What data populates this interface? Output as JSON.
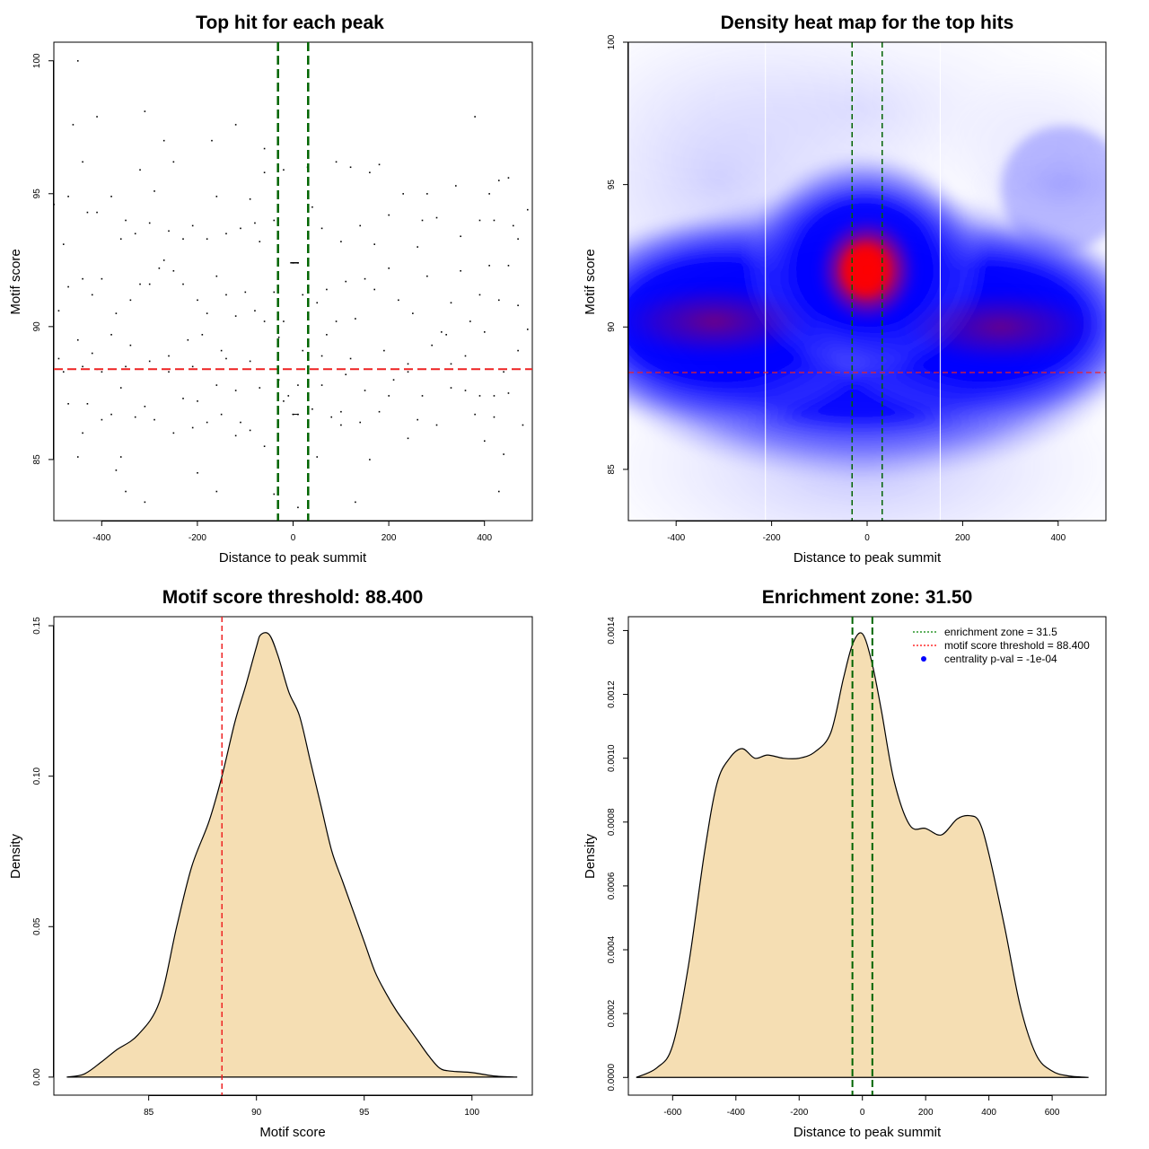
{
  "chart_data": [
    {
      "type": "scatter",
      "title": "Top hit for each peak",
      "xlabel": "Distance to peak summit",
      "ylabel": "Motif score",
      "xlim": [
        -500,
        500
      ],
      "ylim": [
        82.7,
        100.7
      ],
      "xticks": [
        -400,
        -200,
        0,
        200,
        400
      ],
      "xtick_labels": [
        "-400",
        "-200",
        "0",
        "200",
        "400"
      ],
      "yticks": [
        85,
        90,
        95,
        100
      ],
      "ytick_labels": [
        "85",
        "90",
        "95",
        "100"
      ],
      "threshold": 88.4,
      "enrichment_zone": 31.5,
      "points": [
        [
          -450,
          100
        ],
        [
          -310,
          98.1
        ],
        [
          -410,
          97.9
        ],
        [
          -460,
          97.6
        ],
        [
          -120,
          97.6
        ],
        [
          -170,
          97
        ],
        [
          -270,
          97
        ],
        [
          -60,
          96.7
        ],
        [
          -250,
          96.2
        ],
        [
          -440,
          96.2
        ],
        [
          30,
          96
        ],
        [
          -20,
          95.9
        ],
        [
          -320,
          95.9
        ],
        [
          -60,
          95.8
        ],
        [
          160,
          95.8
        ],
        [
          90,
          96.2
        ],
        [
          120,
          96
        ],
        [
          -470,
          94.9
        ],
        [
          -380,
          94.9
        ],
        [
          -90,
          94.8
        ],
        [
          -160,
          94.9
        ],
        [
          -290,
          95.1
        ],
        [
          40,
          94.5
        ],
        [
          230,
          95
        ],
        [
          280,
          95
        ],
        [
          340,
          95.3
        ],
        [
          410,
          95
        ],
        [
          430,
          95.5
        ],
        [
          450,
          95.6
        ],
        [
          -500,
          94.6
        ],
        [
          -430,
          94.3
        ],
        [
          -410,
          94.3
        ],
        [
          -350,
          94
        ],
        [
          -300,
          93.9
        ],
        [
          -260,
          93.6
        ],
        [
          -210,
          93.8
        ],
        [
          -140,
          93.5
        ],
        [
          -110,
          93.7
        ],
        [
          -80,
          93.9
        ],
        [
          -40,
          94
        ],
        [
          60,
          93.7
        ],
        [
          140,
          93.8
        ],
        [
          200,
          94.2
        ],
        [
          270,
          94
        ],
        [
          300,
          94.1
        ],
        [
          390,
          94
        ],
        [
          420,
          94
        ],
        [
          460,
          93.8
        ],
        [
          490,
          94.4
        ],
        [
          -480,
          93.1
        ],
        [
          -360,
          93.3
        ],
        [
          -330,
          93.5
        ],
        [
          -230,
          93.3
        ],
        [
          -180,
          93.3
        ],
        [
          -70,
          93.2
        ],
        [
          0,
          92.4
        ],
        [
          10,
          92.4
        ],
        [
          100,
          93.2
        ],
        [
          170,
          93.1
        ],
        [
          260,
          93
        ],
        [
          350,
          93.4
        ],
        [
          470,
          93.3
        ],
        [
          -470,
          91.5
        ],
        [
          -440,
          91.8
        ],
        [
          -420,
          91.2
        ],
        [
          -400,
          91.8
        ],
        [
          -370,
          90.5
        ],
        [
          -340,
          91
        ],
        [
          -320,
          91.6
        ],
        [
          -300,
          91.6
        ],
        [
          -280,
          92.2
        ],
        [
          -270,
          92.5
        ],
        [
          -250,
          92.1
        ],
        [
          -230,
          91.6
        ],
        [
          -200,
          91
        ],
        [
          -180,
          90.5
        ],
        [
          -160,
          91.9
        ],
        [
          -140,
          91.2
        ],
        [
          -120,
          90.4
        ],
        [
          -100,
          91.3
        ],
        [
          -80,
          90.6
        ],
        [
          -60,
          90.2
        ],
        [
          -40,
          91.3
        ],
        [
          -20,
          90.2
        ],
        [
          20,
          91.2
        ],
        [
          50,
          90.9
        ],
        [
          70,
          91.4
        ],
        [
          90,
          90.2
        ],
        [
          110,
          91.7
        ],
        [
          130,
          90.3
        ],
        [
          150,
          91.8
        ],
        [
          170,
          91.4
        ],
        [
          200,
          92.2
        ],
        [
          220,
          91
        ],
        [
          250,
          90.5
        ],
        [
          280,
          91.9
        ],
        [
          310,
          89.8
        ],
        [
          330,
          90.9
        ],
        [
          350,
          92.1
        ],
        [
          370,
          90.2
        ],
        [
          390,
          91.2
        ],
        [
          410,
          92.3
        ],
        [
          430,
          91
        ],
        [
          450,
          92.3
        ],
        [
          470,
          90.8
        ],
        [
          490,
          89.9
        ],
        [
          -490,
          90.6
        ],
        [
          -450,
          89.5
        ],
        [
          -410,
          88.4
        ],
        [
          -380,
          89.7
        ],
        [
          -340,
          89.3
        ],
        [
          -300,
          88.7
        ],
        [
          -260,
          88.9
        ],
        [
          -220,
          89.5
        ],
        [
          -190,
          89.7
        ],
        [
          -150,
          89.1
        ],
        [
          -90,
          88.7
        ],
        [
          -30,
          89.6
        ],
        [
          20,
          89.1
        ],
        [
          70,
          89.7
        ],
        [
          120,
          88.8
        ],
        [
          190,
          89.1
        ],
        [
          240,
          88.6
        ],
        [
          290,
          89.3
        ],
        [
          320,
          89.7
        ],
        [
          360,
          88.9
        ],
        [
          400,
          89.8
        ],
        [
          440,
          88.3
        ],
        [
          470,
          89.1
        ],
        [
          -480,
          88.3
        ],
        [
          -440,
          88.5
        ],
        [
          -400,
          88.3
        ],
        [
          -350,
          88.5
        ],
        [
          -260,
          88.3
        ],
        [
          -210,
          88.5
        ],
        [
          -160,
          87.8
        ],
        [
          -120,
          87.6
        ],
        [
          -70,
          87.7
        ],
        [
          -30,
          88
        ],
        [
          10,
          87.8
        ],
        [
          60,
          87.8
        ],
        [
          110,
          88.2
        ],
        [
          150,
          87.6
        ],
        [
          210,
          88
        ],
        [
          240,
          88.3
        ],
        [
          270,
          87.4
        ],
        [
          330,
          87.7
        ],
        [
          360,
          87.6
        ],
        [
          390,
          87.4
        ],
        [
          420,
          87.4
        ],
        [
          450,
          87.5
        ],
        [
          -470,
          87.1
        ],
        [
          -430,
          87.1
        ],
        [
          -360,
          87.7
        ],
        [
          -310,
          87
        ],
        [
          -200,
          87.2
        ],
        [
          -150,
          86.7
        ],
        [
          -110,
          86.4
        ],
        [
          -20,
          87.2
        ],
        [
          40,
          86.9
        ],
        [
          80,
          86.6
        ],
        [
          180,
          86.8
        ],
        [
          260,
          86.5
        ],
        [
          300,
          86.3
        ],
        [
          380,
          86.7
        ],
        [
          420,
          86.6
        ],
        [
          -440,
          86
        ],
        [
          -380,
          86.7
        ],
        [
          -330,
          86.6
        ],
        [
          -250,
          86
        ],
        [
          -210,
          86.2
        ],
        [
          -180,
          86.4
        ],
        [
          -90,
          86.1
        ],
        [
          0,
          86.7
        ],
        [
          10,
          86.7
        ],
        [
          100,
          86.3
        ],
        [
          140,
          86.4
        ],
        [
          -450,
          85.1
        ],
        [
          -360,
          85.1
        ],
        [
          -290,
          86.5
        ],
        [
          -60,
          85.5
        ],
        [
          50,
          85.1
        ],
        [
          160,
          85
        ],
        [
          240,
          85.8
        ],
        [
          400,
          85.7
        ],
        [
          440,
          85.2
        ],
        [
          -370,
          84.6
        ],
        [
          -200,
          84.5
        ],
        [
          -350,
          83.8
        ],
        [
          -310,
          83.4
        ],
        [
          -160,
          83.8
        ],
        [
          -40,
          83.7
        ],
        [
          10,
          83.2
        ],
        [
          130,
          83.4
        ],
        [
          430,
          83.8
        ],
        [
          480,
          86.3
        ],
        [
          -420,
          89
        ],
        [
          -230,
          87.3
        ],
        [
          200,
          87.4
        ],
        [
          330,
          88.6
        ],
        [
          -140,
          88.8
        ],
        [
          100,
          86.8
        ],
        [
          -10,
          87.4
        ],
        [
          60,
          88.9
        ],
        [
          -490,
          88.8
        ],
        [
          -400,
          86.5
        ],
        [
          380,
          97.9
        ],
        [
          180,
          96.1
        ],
        [
          -120,
          85.9
        ]
      ]
    },
    {
      "type": "heatmap",
      "title": "Density heat map for the top hits",
      "xlabel": "Distance to peak summit",
      "ylabel": "Motif score",
      "xlim": [
        -500,
        500
      ],
      "ylim": [
        83.2,
        100
      ],
      "xticks": [
        -400,
        -200,
        0,
        200,
        400
      ],
      "xtick_labels": [
        "-400",
        "-200",
        "0",
        "200",
        "400"
      ],
      "yticks": [
        85,
        90,
        95,
        100
      ],
      "ytick_labels": [
        "85",
        "90",
        "95",
        "100"
      ],
      "threshold": 88.4,
      "enrichment_zone": 31.5,
      "white_lines_x": [
        -213,
        153
      ],
      "density_peaks": [
        {
          "x": 0,
          "y": 92,
          "strength": 1.0
        },
        {
          "x": -320,
          "y": 90.2,
          "strength": 0.75
        },
        {
          "x": 280,
          "y": 90,
          "strength": 0.7
        },
        {
          "x": 420,
          "y": 95,
          "strength": 0.3
        }
      ]
    },
    {
      "type": "area",
      "title": "Motif score threshold: 88.400",
      "xlabel": "Motif score",
      "ylabel": "Density",
      "xlim": [
        80.6,
        102.8
      ],
      "ylim": [
        -0.006,
        0.153
      ],
      "xticks": [
        85,
        90,
        95,
        100
      ],
      "xtick_labels": [
        "85",
        "90",
        "95",
        "100"
      ],
      "yticks": [
        0,
        0.05,
        0.1,
        0.15
      ],
      "ytick_labels": [
        "0.00",
        "0.05",
        "0.10",
        "0.15"
      ],
      "threshold": 88.4,
      "x": [
        81.2,
        82,
        82.8,
        83.5,
        84.5,
        85.5,
        86.3,
        87,
        87.8,
        88.4,
        89,
        89.5,
        90,
        90.2,
        90.6,
        91,
        91.5,
        92,
        92.5,
        93,
        93.5,
        94,
        94.5,
        95,
        95.5,
        96,
        96.5,
        97,
        97.5,
        98,
        98.5,
        99,
        100,
        101,
        102.1
      ],
      "y": [
        0,
        0.001,
        0.005,
        0.009,
        0.014,
        0.025,
        0.05,
        0.07,
        0.085,
        0.1,
        0.118,
        0.13,
        0.143,
        0.147,
        0.147,
        0.14,
        0.128,
        0.12,
        0.105,
        0.09,
        0.075,
        0.065,
        0.055,
        0.045,
        0.035,
        0.028,
        0.022,
        0.017,
        0.012,
        0.007,
        0.003,
        0.002,
        0.0015,
        0.0004,
        0
      ]
    },
    {
      "type": "area",
      "title": "Enrichment zone: 31.50",
      "xlabel": "Distance to peak summit",
      "ylabel": "Density",
      "xlim": [
        -740,
        770
      ],
      "ylim": [
        -5.55e-05,
        0.0014434
      ],
      "xticks": [
        -600,
        -400,
        -200,
        0,
        200,
        400,
        600
      ],
      "xtick_labels": [
        "-600",
        "-400",
        "-200",
        "0",
        "200",
        "400",
        "600"
      ],
      "yticks": [
        0,
        0.0002,
        0.0004,
        0.0006,
        0.0008,
        0.001,
        0.0012,
        0.0014
      ],
      "ytick_labels": [
        "0.0000",
        "0.0002",
        "0.0004",
        "0.0006",
        "0.0008",
        "0.0010",
        "0.0012",
        "0.0014"
      ],
      "enrichment_zone": 31.5,
      "threshold": 88.4,
      "x": [
        -715,
        -650,
        -600,
        -550,
        -500,
        -460,
        -420,
        -380,
        -340,
        -300,
        -250,
        -200,
        -150,
        -100,
        -60,
        -30,
        0,
        30,
        60,
        100,
        150,
        200,
        250,
        300,
        340,
        370,
        400,
        450,
        500,
        550,
        600,
        650,
        715
      ],
      "y": [
        0,
        3e-05,
        0.0001,
        0.00035,
        0.0007,
        0.00092,
        0.001,
        0.00103,
        0.001,
        0.00101,
        0.001,
        0.001,
        0.00102,
        0.00108,
        0.00125,
        0.00136,
        0.00139,
        0.0013,
        0.00115,
        0.00093,
        0.00079,
        0.00078,
        0.00076,
        0.00081,
        0.00082,
        0.0008,
        0.0007,
        0.00047,
        0.00022,
        7e-05,
        2e-05,
        5e-06,
        0
      ],
      "legend": [
        {
          "label": "enrichment zone = 31.5",
          "color": "#008000",
          "style": "dotted-line"
        },
        {
          "label": "motif score threshold = 88.400",
          "color": "#ff0000",
          "style": "dotted-line"
        },
        {
          "label": "centrality p-val = -1e-04",
          "color": "#0000ff",
          "style": "dot"
        }
      ],
      "legend_position": "top-right"
    }
  ],
  "colors": {
    "fill": "#F5DEB3",
    "threshold": "#ee2222",
    "enrichment": "#006400",
    "point": "#000000"
  }
}
